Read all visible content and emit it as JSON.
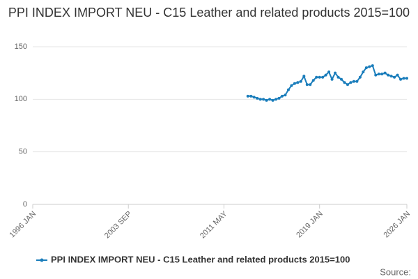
{
  "chart_data": {
    "type": "line",
    "title": "PPI INDEX IMPORT NEU - C15 Leather and related products 2015=100",
    "source": "Source:",
    "x": [
      "2013 APR",
      "2013 JUL",
      "2013 OCT",
      "2014 JAN",
      "2014 APR",
      "2014 JUL",
      "2014 OCT",
      "2015 JAN",
      "2015 APR",
      "2015 JUL",
      "2015 OCT",
      "2016 JAN",
      "2016 APR",
      "2016 JUL",
      "2016 OCT",
      "2017 JAN",
      "2017 APR",
      "2017 JUL",
      "2017 OCT",
      "2018 JAN",
      "2018 APR",
      "2018 JUL",
      "2018 OCT",
      "2019 JAN",
      "2019 APR",
      "2019 JUL",
      "2019 OCT",
      "2020 JAN",
      "2020 APR",
      "2020 JUL",
      "2020 OCT",
      "2021 JAN",
      "2021 APR",
      "2021 JUL",
      "2021 OCT",
      "2022 JAN",
      "2022 APR",
      "2022 JUL",
      "2022 OCT",
      "2023 JAN",
      "2023 APR",
      "2023 JUL",
      "2023 OCT",
      "2024 JAN",
      "2024 APR",
      "2024 JUL",
      "2024 OCT",
      "2025 JAN",
      "2025 APR",
      "2025 JUL",
      "2025 OCT",
      "2026 JAN"
    ],
    "series": [
      {
        "name": "PPI INDEX IMPORT NEU - C15 Leather and related products 2015=100",
        "color": "#1a7dbb",
        "values": [
          103,
          103,
          102,
          101,
          100,
          100,
          99,
          100,
          99,
          100,
          101,
          103,
          104,
          109,
          113,
          115,
          116,
          117,
          122,
          114,
          114,
          118,
          121,
          121,
          121,
          123,
          126,
          119,
          125,
          121,
          119,
          116,
          114,
          116,
          117,
          117,
          121,
          126,
          130,
          131,
          132,
          123,
          124,
          124,
          125,
          123,
          122,
          121,
          123,
          119,
          120,
          120
        ]
      }
    ],
    "xlim": [
      "1996 JAN",
      "2026 JAN"
    ],
    "xticks": [
      "1996 JAN",
      "2003 SEP",
      "2011 MAY",
      "2019 JAN",
      "2026 JAN"
    ],
    "ylim": [
      0,
      150
    ],
    "yticks": [
      0,
      50,
      100,
      150
    ],
    "grid": true,
    "legend": "bottom"
  }
}
